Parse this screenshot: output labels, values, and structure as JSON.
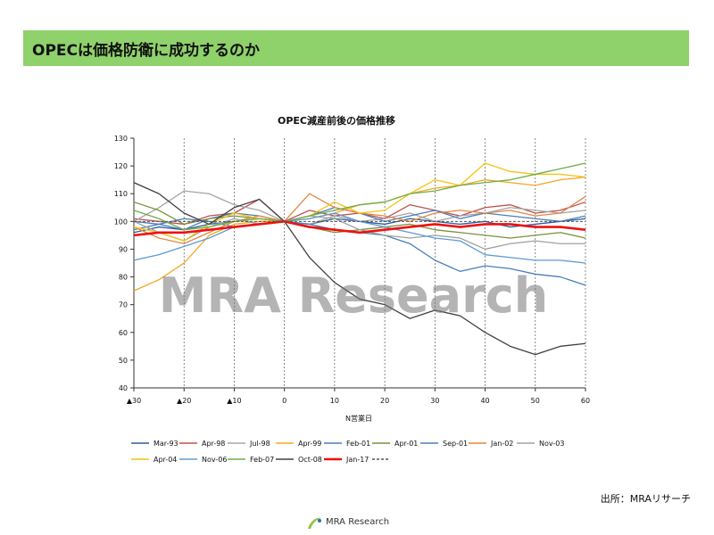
{
  "slide": {
    "title": "OPECは価格防衛に成功するのか",
    "source": "出所：MRAリサーチ",
    "footer_brand": "MRA Research"
  },
  "chart_data": {
    "type": "line",
    "title": "OPEC減産前後の価格推移",
    "xlabel": "N営業日",
    "ylabel": "",
    "xlim": [
      -30,
      60
    ],
    "ylim": [
      40,
      130
    ],
    "y_ticks": [
      40,
      50,
      60,
      70,
      80,
      90,
      100,
      110,
      120,
      130
    ],
    "x_ticks": [
      {
        "x": -30,
        "label": "▲30"
      },
      {
        "x": -20,
        "label": "▲20"
      },
      {
        "x": -10,
        "label": "▲10"
      },
      {
        "x": 0,
        "label": "0"
      },
      {
        "x": 10,
        "label": "10"
      },
      {
        "x": 20,
        "label": "20"
      },
      {
        "x": 30,
        "label": "30"
      },
      {
        "x": 40,
        "label": "40"
      },
      {
        "x": 50,
        "label": "50"
      },
      {
        "x": 60,
        "label": "60"
      }
    ],
    "grid": "vertical-dashed",
    "legend": "bottom",
    "watermark": "MRA Research",
    "x": [
      -30,
      -25,
      -20,
      -15,
      -10,
      -5,
      0,
      5,
      10,
      15,
      20,
      25,
      30,
      35,
      40,
      45,
      50,
      55,
      60
    ],
    "series": [
      {
        "name": "Mar-93",
        "color": "#2e5c9a",
        "values": [
          96,
          98,
          97,
          99,
          100,
          101,
          100,
          99,
          101,
          100,
          99,
          101,
          100,
          99,
          100,
          98,
          99,
          100,
          101
        ]
      },
      {
        "name": "Apr-98",
        "color": "#c0504d",
        "values": [
          101,
          100,
          99,
          102,
          103,
          108,
          100,
          104,
          102,
          103,
          101,
          106,
          104,
          102,
          105,
          106,
          103,
          104,
          107
        ]
      },
      {
        "name": "Jul-98",
        "color": "#a5a5a5",
        "values": [
          100,
          105,
          111,
          110,
          106,
          104,
          100,
          99,
          102,
          100,
          101,
          103,
          100,
          102,
          103,
          105,
          104,
          103,
          104
        ]
      },
      {
        "name": "Apr-99",
        "color": "#f5a623",
        "values": [
          75,
          79,
          85,
          95,
          99,
          100,
          100,
          101,
          103,
          106,
          107,
          110,
          112,
          113,
          115,
          114,
          113,
          115,
          116
        ]
      },
      {
        "name": "Feb-01",
        "color": "#4a7ebb",
        "values": [
          100,
          99,
          97,
          101,
          103,
          102,
          100,
          102,
          105,
          103,
          100,
          102,
          104,
          101,
          103,
          102,
          101,
          100,
          102
        ]
      },
      {
        "name": "Apr-01",
        "color": "#77933c",
        "values": [
          107,
          104,
          99,
          101,
          102,
          101,
          100,
          98,
          96,
          97,
          98,
          99,
          97,
          96,
          95,
          94,
          95,
          96,
          94
        ]
      },
      {
        "name": "Sep-01",
        "color": "#4a7ebb",
        "values": [
          97,
          99,
          101,
          100,
          98,
          99,
          100,
          99,
          97,
          96,
          95,
          92,
          86,
          82,
          84,
          83,
          81,
          80,
          77
        ]
      },
      {
        "name": "Jan-02",
        "color": "#e28743",
        "values": [
          98,
          94,
          92,
          96,
          100,
          102,
          100,
          110,
          105,
          103,
          102,
          100,
          103,
          104,
          103,
          104,
          102,
          103,
          109
        ]
      },
      {
        "name": "Nov-03",
        "color": "#a0a0a0",
        "values": [
          100,
          96,
          93,
          98,
          101,
          99,
          100,
          102,
          101,
          97,
          95,
          94,
          95,
          94,
          90,
          92,
          93,
          92,
          92
        ]
      },
      {
        "name": "Apr-04",
        "color": "#f2c40f",
        "values": [
          98,
          96,
          93,
          99,
          103,
          101,
          100,
          102,
          107,
          103,
          104,
          110,
          115,
          113,
          121,
          118,
          117,
          117,
          116
        ]
      },
      {
        "name": "Nov-06",
        "color": "#5b9bd5",
        "values": [
          86,
          88,
          91,
          94,
          98,
          99,
          100,
          101,
          103,
          100,
          98,
          96,
          94,
          93,
          88,
          87,
          86,
          86,
          85
        ]
      },
      {
        "name": "Feb-07",
        "color": "#70ad47",
        "values": [
          104,
          101,
          97,
          98,
          100,
          101,
          100,
          102,
          104,
          106,
          107,
          110,
          111,
          113,
          114,
          115,
          117,
          119,
          121
        ]
      },
      {
        "name": "Oct-08",
        "color": "#404040",
        "values": [
          114,
          110,
          103,
          99,
          105,
          108,
          100,
          87,
          78,
          72,
          70,
          65,
          68,
          66,
          60,
          55,
          52,
          55,
          56
        ]
      },
      {
        "name": "Jan-17",
        "color": "#ee1111",
        "values": [
          95,
          96,
          96,
          97,
          98,
          99,
          100,
          98,
          97,
          96,
          97,
          98,
          99,
          98,
          99,
          99,
          98,
          98,
          97
        ]
      },
      {
        "name": "",
        "color": "#555555",
        "dashed": true,
        "values": [
          100,
          100,
          100,
          100,
          100,
          100,
          100,
          100,
          100,
          100,
          100,
          100,
          100,
          100,
          100,
          100,
          100,
          100,
          100
        ]
      }
    ]
  }
}
